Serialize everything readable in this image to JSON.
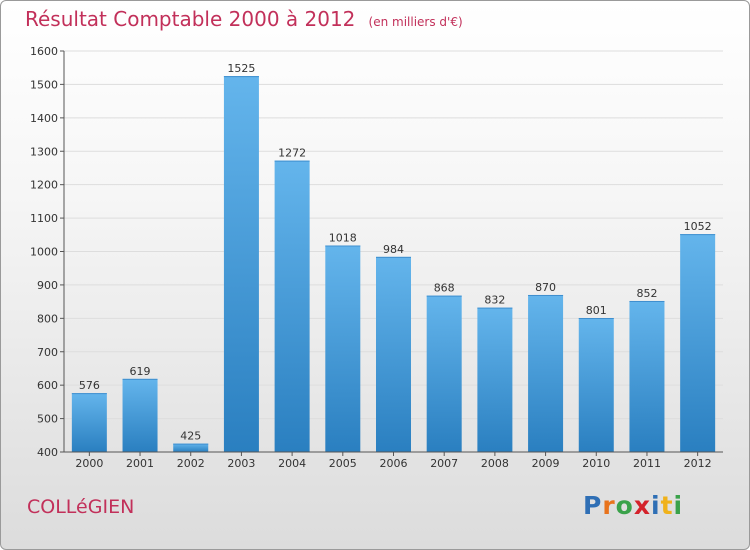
{
  "title": "Résultat Comptable 2000 à 2012",
  "unit": "(en milliers d'€)",
  "city": "COLLéGIEN",
  "logo": {
    "letters": [
      {
        "ch": "P",
        "color": "#2f6fb5"
      },
      {
        "ch": "r",
        "color": "#e8731c"
      },
      {
        "ch": "o",
        "color": "#3aa24a"
      },
      {
        "ch": "x",
        "color": "#d4222b"
      },
      {
        "ch": "i",
        "color": "#2f6fb5"
      },
      {
        "ch": "t",
        "color": "#f0b21b"
      },
      {
        "ch": "i",
        "color": "#3aa24a"
      }
    ]
  },
  "colors": {
    "bar_light": "#64b5ec",
    "bar_dark": "#2a7fc0",
    "grid": "#dddddd"
  },
  "chart_data": {
    "type": "bar",
    "categories": [
      "2000",
      "2001",
      "2002",
      "2003",
      "2004",
      "2005",
      "2006",
      "2007",
      "2008",
      "2009",
      "2010",
      "2011",
      "2012"
    ],
    "values": [
      576,
      619,
      425,
      1525,
      1272,
      1018,
      984,
      868,
      832,
      870,
      801,
      852,
      1052
    ],
    "ylim": [
      400,
      1600
    ],
    "yticks": [
      400,
      500,
      600,
      700,
      800,
      900,
      1000,
      1100,
      1200,
      1300,
      1400,
      1500,
      1600
    ],
    "grid": "horizontal"
  }
}
